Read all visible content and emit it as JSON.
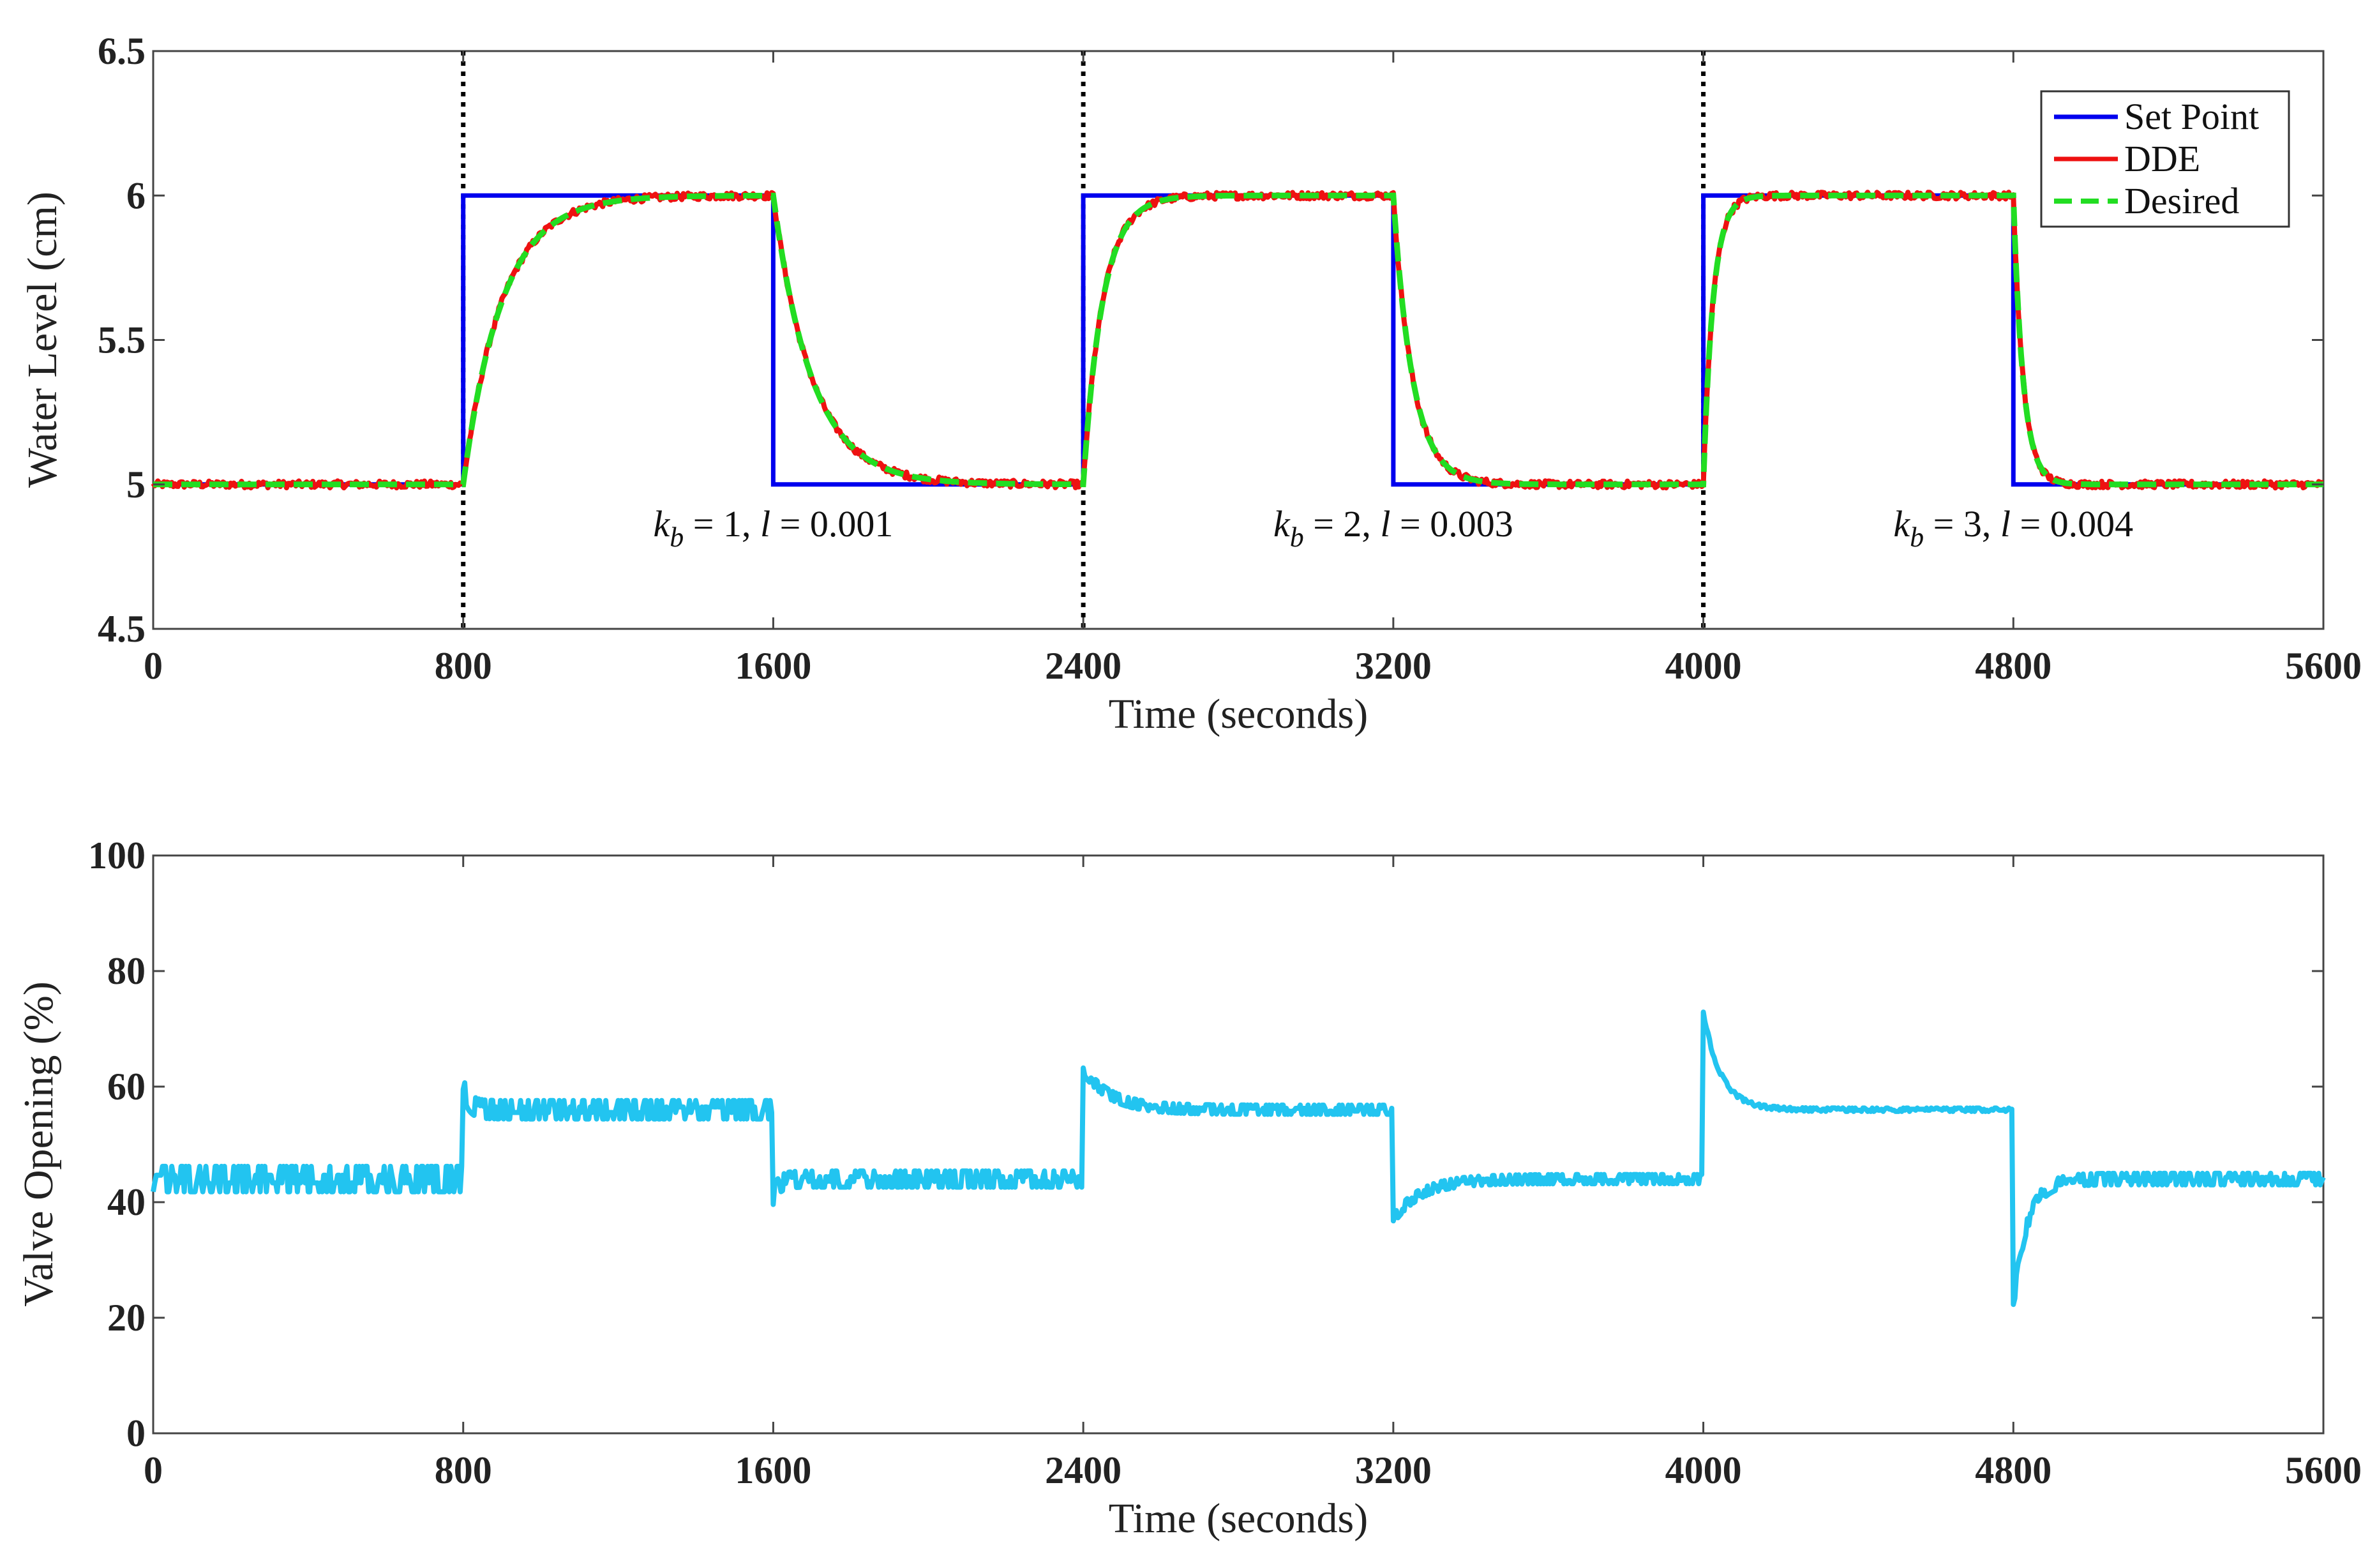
{
  "chart_data": [
    {
      "type": "line",
      "xlabel": "Time (seconds)",
      "ylabel": "Water Level (cm)",
      "xlim": [
        0,
        5600
      ],
      "ylim": [
        4.5,
        6.5
      ],
      "xticks": [
        0,
        800,
        1600,
        2400,
        3200,
        4000,
        4800,
        5600
      ],
      "xtick_labels": [
        "0",
        "800",
        "1600",
        "2400",
        "3200",
        "4000",
        "4800",
        "5600"
      ],
      "yticks": [
        4.5,
        5,
        5.5,
        6,
        6.5
      ],
      "ytick_labels": [
        "4.5",
        "5",
        "5.5",
        "6",
        "6.5"
      ],
      "legend": {
        "location": "top-right",
        "entries": [
          {
            "label": "Set Point",
            "color": "#0000ee",
            "style": "solid"
          },
          {
            "label": "DDE",
            "color": "#ee1111",
            "style": "solid"
          },
          {
            "label": "Desired",
            "color": "#22dd22",
            "style": "dashed"
          }
        ]
      },
      "vertical_markers": [
        800,
        2400,
        4000
      ],
      "annotations": [
        {
          "x": 1600,
          "y": 4.82,
          "k": "k",
          "sub": "b",
          "text": " = 1, ",
          "l": "l",
          "rest": " = 0.001"
        },
        {
          "x": 3200,
          "y": 4.82,
          "k": "k",
          "sub": "b",
          "text": " = 2, ",
          "l": "l",
          "rest": " = 0.003"
        },
        {
          "x": 4800,
          "y": 4.82,
          "k": "k",
          "sub": "b",
          "text": " = 3, ",
          "l": "l",
          "rest": " = 0.004"
        }
      ],
      "setpoint": {
        "name": "Set Point",
        "x": [
          0,
          800,
          800,
          1600,
          1600,
          2400,
          2400,
          3200,
          3200,
          4000,
          4000,
          4800,
          4800,
          5600
        ],
        "y": [
          5,
          5,
          6,
          6,
          5,
          5,
          6,
          6,
          5,
          5,
          6,
          6,
          5,
          5
        ]
      },
      "response_segments": [
        {
          "start": 800,
          "end": 1600,
          "from": 5,
          "to": 6,
          "tau": 100
        },
        {
          "start": 1600,
          "end": 2400,
          "from": 6,
          "to": 5,
          "tau": 100
        },
        {
          "start": 2400,
          "end": 3200,
          "from": 5,
          "to": 6,
          "tau": 50
        },
        {
          "start": 3200,
          "end": 4000,
          "from": 6,
          "to": 5,
          "tau": 50
        },
        {
          "start": 4000,
          "end": 4800,
          "from": 5,
          "to": 6,
          "tau": 25
        },
        {
          "start": 4800,
          "end": 5600,
          "from": 6,
          "to": 5,
          "tau": 25
        }
      ],
      "series": [
        {
          "name": "DDE",
          "color": "#ee1111",
          "noise_amplitude": 0.012
        },
        {
          "name": "Desired",
          "color": "#22dd22",
          "noise_amplitude": 0
        }
      ]
    },
    {
      "type": "line",
      "xlabel": "Time (seconds)",
      "ylabel": "Valve Opening (%)",
      "xlim": [
        0,
        5600
      ],
      "ylim": [
        0,
        100
      ],
      "xticks": [
        0,
        800,
        1600,
        2400,
        3200,
        4000,
        4800,
        5600
      ],
      "xtick_labels": [
        "0",
        "800",
        "1600",
        "2400",
        "3200",
        "4000",
        "4800",
        "5600"
      ],
      "yticks": [
        0,
        20,
        40,
        60,
        80,
        100
      ],
      "ytick_labels": [
        "0",
        "20",
        "40",
        "60",
        "80",
        "100"
      ],
      "series": [
        {
          "name": "Valve Opening",
          "color": "#22c4f0",
          "segments": [
            {
              "start": 0,
              "end": 800,
              "base": 44,
              "peak": 44,
              "decay": 1,
              "noise": 2.2
            },
            {
              "start": 800,
              "end": 1600,
              "base": 56,
              "peak": 60,
              "decay": 15,
              "noise": 1.6
            },
            {
              "start": 1600,
              "end": 2400,
              "base": 44,
              "peak": 41,
              "decay": 15,
              "noise": 1.4
            },
            {
              "start": 2400,
              "end": 3200,
              "base": 56,
              "peak": 63,
              "decay": 70,
              "noise": 0.8
            },
            {
              "start": 3200,
              "end": 4000,
              "base": 44,
              "peak": 37,
              "decay": 70,
              "noise": 0.8
            },
            {
              "start": 4000,
              "end": 4800,
              "base": 56,
              "peak": 73,
              "decay": 45,
              "noise": 0.3
            },
            {
              "start": 4800,
              "end": 5600,
              "base": 44,
              "peak": 22,
              "decay": 35,
              "noise": 1.0
            }
          ]
        }
      ]
    }
  ]
}
